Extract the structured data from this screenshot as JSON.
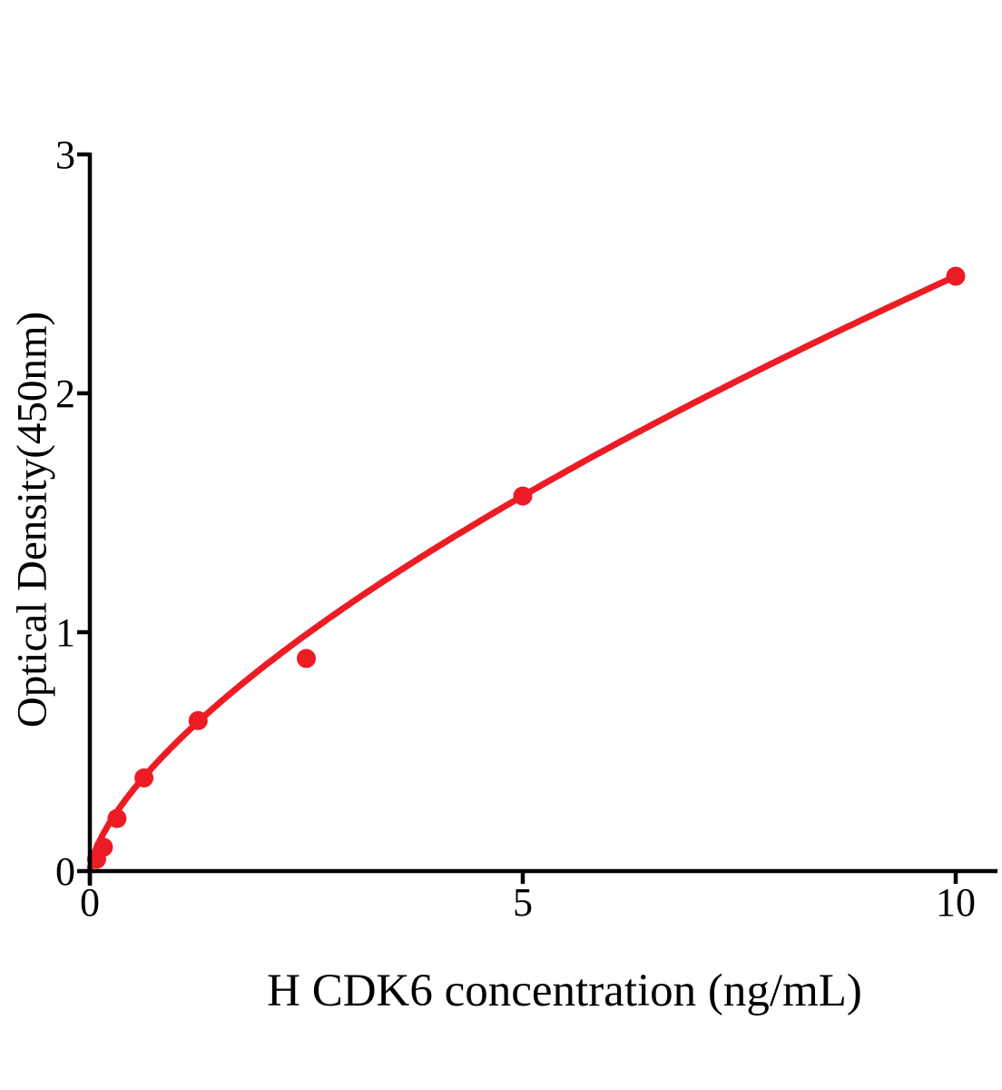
{
  "figure": {
    "background_color": "#ffffff",
    "axis_color": "#000000",
    "accent_red": "#ed1c24"
  },
  "chart_data": {
    "type": "scatter",
    "title": "",
    "xlabel": "H CDK6 concentration (ng/mL)",
    "ylabel": "Optical Density(450nm)",
    "xlim": [
      0,
      10.5
    ],
    "ylim": [
      0,
      3
    ],
    "x_ticks": [
      0,
      5,
      10
    ],
    "x_tick_labels": [
      "0",
      "5",
      "10"
    ],
    "y_ticks": [
      0,
      1,
      2,
      3
    ],
    "y_tick_labels": [
      "0",
      "1",
      "2",
      "3"
    ],
    "grid": false,
    "legend_position": "none",
    "series": [
      {
        "name": "standard-points",
        "type": "scatter",
        "color": "#ed1c24",
        "x": [
          0.078,
          0.156,
          0.313,
          0.625,
          1.25,
          2.5,
          5,
          10
        ],
        "y": [
          0.05,
          0.1,
          0.22,
          0.39,
          0.63,
          0.89,
          1.57,
          2.49
        ]
      },
      {
        "name": "fit-curve",
        "type": "power-fit-line",
        "color": "#ed1c24",
        "fit_a": 2.49,
        "fit_b": 0.665,
        "x_range": [
          0,
          10
        ]
      }
    ]
  }
}
